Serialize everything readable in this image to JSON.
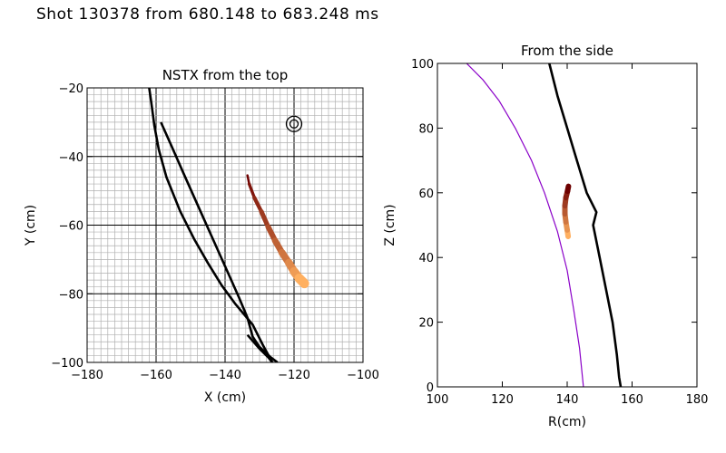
{
  "page": {
    "title": "Shot 130378 from 680.148 to 683.248 ms"
  },
  "colors": {
    "axes": "#000000",
    "grid_major": "#000000",
    "grid_minor": "#b0b0b0",
    "vessel": "#000000",
    "separatrix": "#8a00c8",
    "puff_start": "#6e0000",
    "puff_end": "#ffb060",
    "nozzle_marker": "#000000"
  },
  "chart_data": [
    {
      "id": "top-view",
      "type": "line",
      "title": "NSTX from the top",
      "xlabel": "X (cm)",
      "ylabel": "Y (cm)",
      "xlim": [
        -180,
        -100
      ],
      "ylim": [
        -100,
        -20
      ],
      "x_ticks": [
        -180,
        -160,
        -140,
        -120,
        -100
      ],
      "y_ticks": [
        -100,
        -80,
        -60,
        -40,
        -20
      ],
      "x_tick_labels": [
        "−180",
        "−160",
        "−140",
        "−120",
        "−100"
      ],
      "y_tick_labels": [
        "−100",
        "−80",
        "−60",
        "−40",
        "−20"
      ],
      "grid": true,
      "grid_minor_step": 2,
      "grid_major_step": 20,
      "series": [
        {
          "role": "wall",
          "x": [
            -162,
            -161.3,
            -160.5,
            -159.2,
            -157,
            -153,
            -149,
            -145,
            -141,
            -137,
            -132,
            -129,
            -126.3
          ],
          "y": [
            -20,
            -25,
            -31,
            -38,
            -46,
            -56,
            -64,
            -71,
            -77.5,
            -83,
            -89,
            -95,
            -100
          ]
        },
        {
          "role": "wall",
          "x": [
            -158.6,
            -155.5,
            -152,
            -148,
            -144,
            -140,
            -136,
            -133.5,
            -132,
            -130,
            -126.8,
            -124.8
          ],
          "y": [
            -30,
            -37,
            -45,
            -54,
            -63,
            -72,
            -81,
            -87,
            -92.5,
            -95.5,
            -98.5,
            -100
          ]
        },
        {
          "role": "wall",
          "x": [
            -133.5,
            -130,
            -127.5,
            -126.3
          ],
          "y": [
            -92,
            -96,
            -98.5,
            -100
          ]
        }
      ],
      "gas_puff": {
        "x": [
          -133.5,
          -133,
          -131.5,
          -129.5,
          -127.5,
          -125.5,
          -123.5,
          -121.5,
          -120,
          -118.5,
          -117
        ],
        "y": [
          -45.5,
          -48,
          -52,
          -56,
          -60.5,
          -64.5,
          -68,
          -71,
          -73.5,
          -75.5,
          -77
        ]
      },
      "marker": {
        "x": -120,
        "y": -30.5
      }
    },
    {
      "id": "side-view",
      "type": "line",
      "title": "From the side",
      "xlabel": "R(cm)",
      "ylabel": "Z (cm)",
      "xlim": [
        100,
        180
      ],
      "ylim": [
        0,
        100
      ],
      "x_ticks": [
        100,
        120,
        140,
        160,
        180
      ],
      "y_ticks": [
        0,
        20,
        40,
        60,
        80,
        100
      ],
      "x_tick_labels": [
        "100",
        "120",
        "140",
        "160",
        "180"
      ],
      "y_tick_labels": [
        "0",
        "20",
        "40",
        "60",
        "80",
        "100"
      ],
      "grid": false,
      "series": [
        {
          "role": "wall",
          "x": [
            134.5,
            137,
            140,
            143,
            146,
            149,
            148,
            150,
            152,
            154,
            155.3,
            156,
            156.5
          ],
          "y": [
            100,
            90,
            80,
            70,
            60,
            54,
            50,
            40,
            30,
            20,
            10,
            3,
            0
          ]
        },
        {
          "role": "separatrix",
          "x": [
            109,
            114,
            119,
            124,
            129,
            133,
            137,
            140,
            142,
            143.8,
            145
          ],
          "y": [
            100,
            95,
            88.5,
            80,
            70,
            60,
            48,
            36,
            24,
            12,
            0
          ]
        }
      ],
      "gas_puff": {
        "x": [
          140.3,
          140.0,
          139.6,
          139.3,
          139.3,
          139.6,
          140.1,
          140.4
        ],
        "y": [
          46.5,
          48.5,
          51,
          53.5,
          56,
          58.5,
          60.5,
          62
        ]
      }
    }
  ]
}
